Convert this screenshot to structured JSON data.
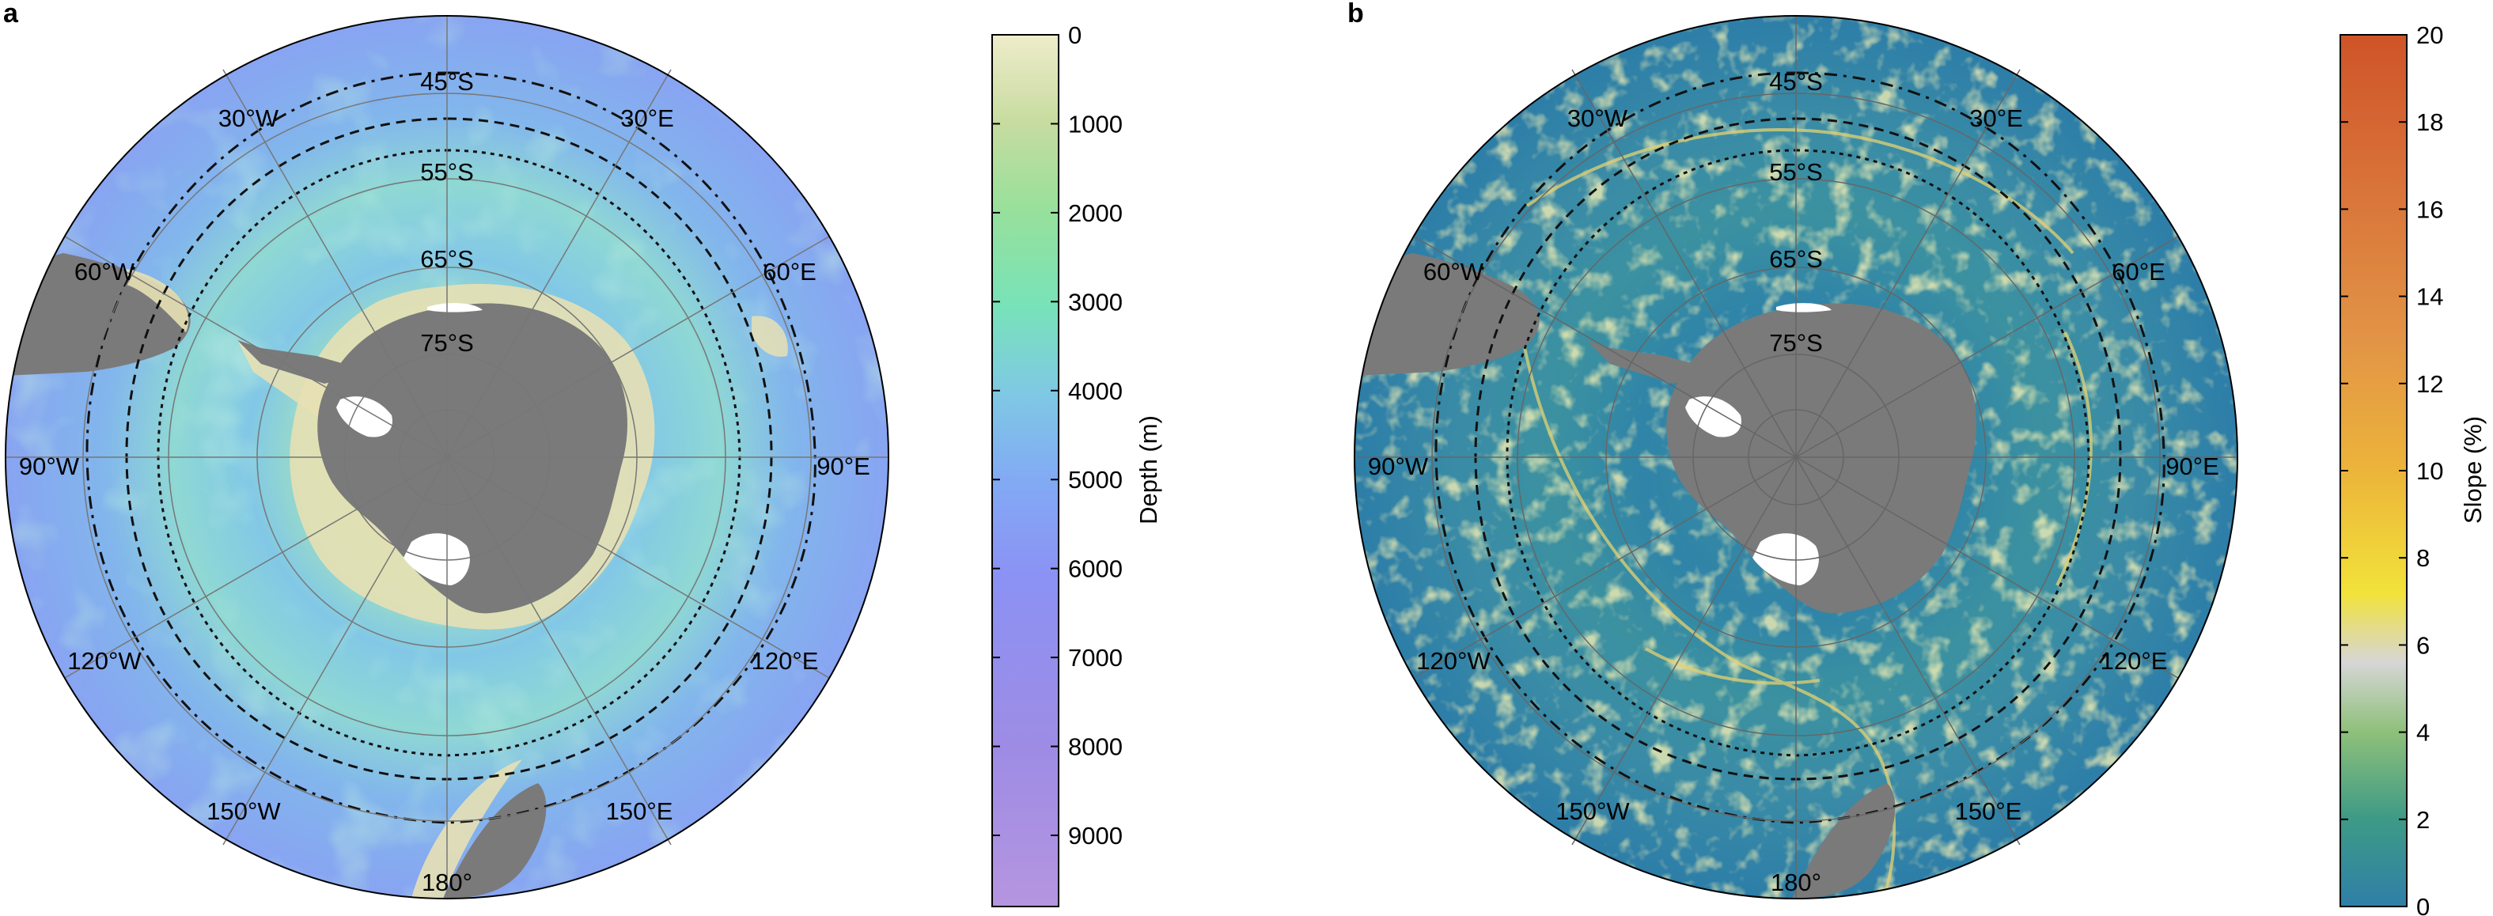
{
  "panels": [
    {
      "letter": "a",
      "variable": "depth",
      "latitude_labels": [
        "45°S",
        "55°S",
        "65°S",
        "75°S"
      ],
      "longitude_labels": [
        "30°W",
        "30°E",
        "60°W",
        "60°E",
        "90°W",
        "90°E",
        "120°W",
        "120°E",
        "150°W",
        "150°E",
        "180°"
      ],
      "colorbar": {
        "title": "Depth (m)",
        "ticks": [
          "0",
          "1000",
          "2000",
          "3000",
          "4000",
          "5000",
          "6000",
          "7000",
          "8000",
          "9000"
        ],
        "range": [
          0,
          9800
        ],
        "colors": [
          "#efeccb",
          "#c7dca0",
          "#98e09b",
          "#78e3b8",
          "#7fc9e4",
          "#82aaf4",
          "#8b92f4",
          "#9e8ce4",
          "#b595e0"
        ]
      }
    },
    {
      "letter": "b",
      "variable": "slope",
      "latitude_labels": [
        "45°S",
        "55°S",
        "65°S",
        "75°S"
      ],
      "longitude_labels": [
        "30°W",
        "30°E",
        "60°W",
        "60°E",
        "90°W",
        "90°E",
        "120°W",
        "120°E",
        "150°W",
        "150°E",
        "180°"
      ],
      "colorbar": {
        "title": "Slope (%)",
        "ticks": [
          "0",
          "2",
          "4",
          "6",
          "8",
          "10",
          "12",
          "14",
          "16",
          "18",
          "20"
        ],
        "range": [
          0,
          20
        ],
        "colors": [
          "#2f7fa8",
          "#3d9a86",
          "#8ec07a",
          "#d6d6d6",
          "#f2e23a",
          "#ecb43a",
          "#e29446",
          "#d9743a",
          "#cf5428"
        ]
      }
    }
  ],
  "colors": {
    "land": "#7a7a7a",
    "ice_shelf": "#ffffff",
    "shelf_tan": "#e7e0b4",
    "graticule": "#777777",
    "front_line": "#111111"
  }
}
